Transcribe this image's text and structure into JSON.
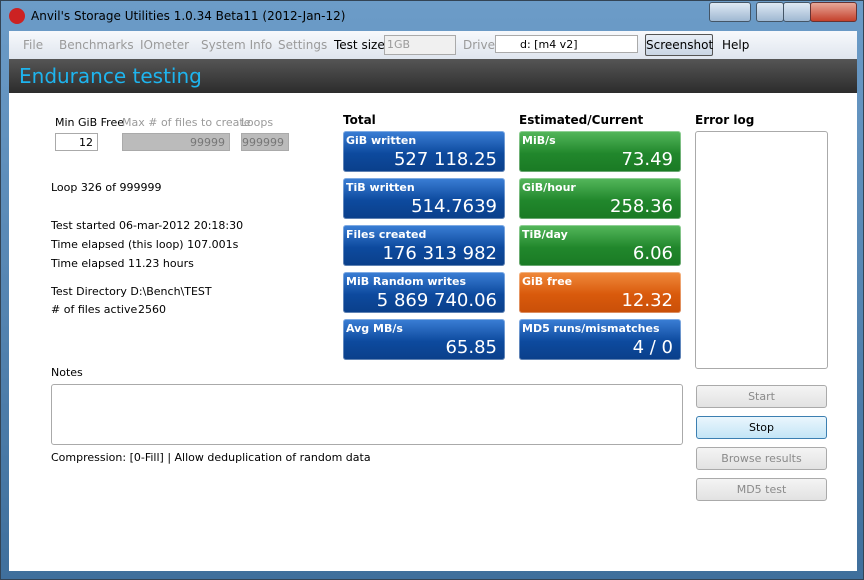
{
  "window": {
    "title": "Anvil's Storage Utilities 1.0.34 Beta11 (2012-Jan-12)"
  },
  "menu": {
    "items": [
      "File",
      "Benchmarks",
      "IOmeter",
      "System Info",
      "Settings"
    ],
    "test_size_label": "Test size",
    "test_size": "1GB",
    "drive_label": "Drive",
    "drive": "d: [m4 v2]",
    "screenshot": "Screenshot",
    "help": "Help"
  },
  "header": {
    "title": "Endurance testing"
  },
  "settings": {
    "fields": [
      {
        "label": "Min GiB Free",
        "value": "12"
      },
      {
        "label": "Max # of files to create",
        "value": "99999"
      },
      {
        "label": "Loops",
        "value": "999999"
      }
    ]
  },
  "status": {
    "lines": [
      "Loop 326 of 999999",
      "Test started 06-mar-2012 20:18:30",
      "Time elapsed (this loop) 107.001s",
      "Time elapsed 11.23 hours",
      "Test Directory D:\\Bench\\TEST"
    ],
    "files_active_label": "# of files active",
    "files_active": "2560"
  },
  "total": {
    "heading": "Total",
    "tiles": [
      {
        "label": "GiB written",
        "value": "527 118.25"
      },
      {
        "label": "TiB written",
        "value": "514.7639"
      },
      {
        "label": "Files created",
        "value": "176 313 982"
      },
      {
        "label": "MiB Random writes",
        "value": "5 869 740.06"
      },
      {
        "label": "Avg MB/s",
        "value": "65.85"
      }
    ]
  },
  "estimated": {
    "heading": "Estimated/Current",
    "tiles": [
      {
        "label": "MiB/s",
        "value": "73.49"
      },
      {
        "label": "GiB/hour",
        "value": "258.36"
      },
      {
        "label": "TiB/day",
        "value": "6.06"
      },
      {
        "label": "GiB free",
        "value": "12.32"
      },
      {
        "label": "MD5 runs/mismatches",
        "value": "4 / 0"
      }
    ]
  },
  "error_log": {
    "heading": "Error log"
  },
  "notes": {
    "label": "Notes"
  },
  "compression": "Compression: [0-Fill] | Allow deduplication of random data",
  "buttons": [
    "Start",
    "Stop",
    "Browse results",
    "MD5 test"
  ]
}
